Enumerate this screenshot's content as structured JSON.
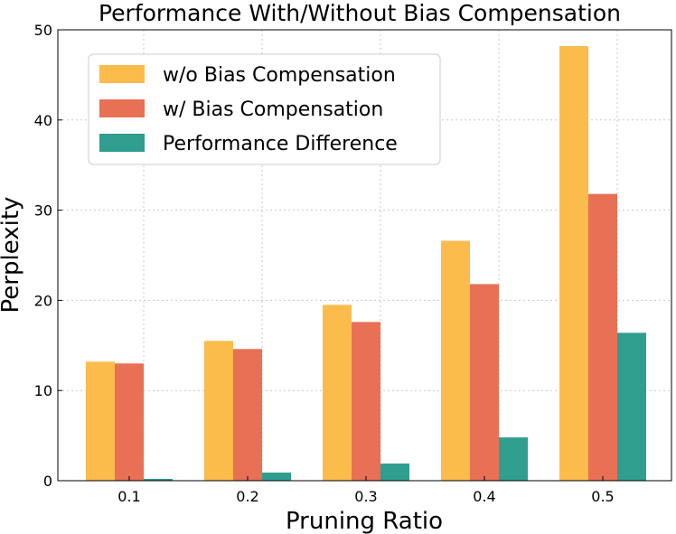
{
  "chart_data": {
    "type": "bar",
    "title": "Performance With/Without Bias Compensation",
    "xlabel": "Pruning Ratio",
    "ylabel": "Perplexity",
    "categories": [
      "0.1",
      "0.2",
      "0.3",
      "0.4",
      "0.5"
    ],
    "series": [
      {
        "name": "w/o Bias Compensation",
        "color": "#fbbc4c",
        "values": [
          13.2,
          15.5,
          19.5,
          26.6,
          48.2
        ]
      },
      {
        "name": "w/ Bias Compensation",
        "color": "#e87054",
        "values": [
          13.0,
          14.6,
          17.6,
          21.8,
          31.8
        ]
      },
      {
        "name": "Performance Difference",
        "color": "#2f9e8e",
        "values": [
          0.2,
          0.9,
          1.9,
          4.8,
          16.4
        ]
      }
    ],
    "ylim": [
      0,
      50
    ],
    "yticks": [
      "0",
      "10",
      "20",
      "30",
      "40",
      "50"
    ],
    "grid": true,
    "legend_position": "top-left"
  }
}
